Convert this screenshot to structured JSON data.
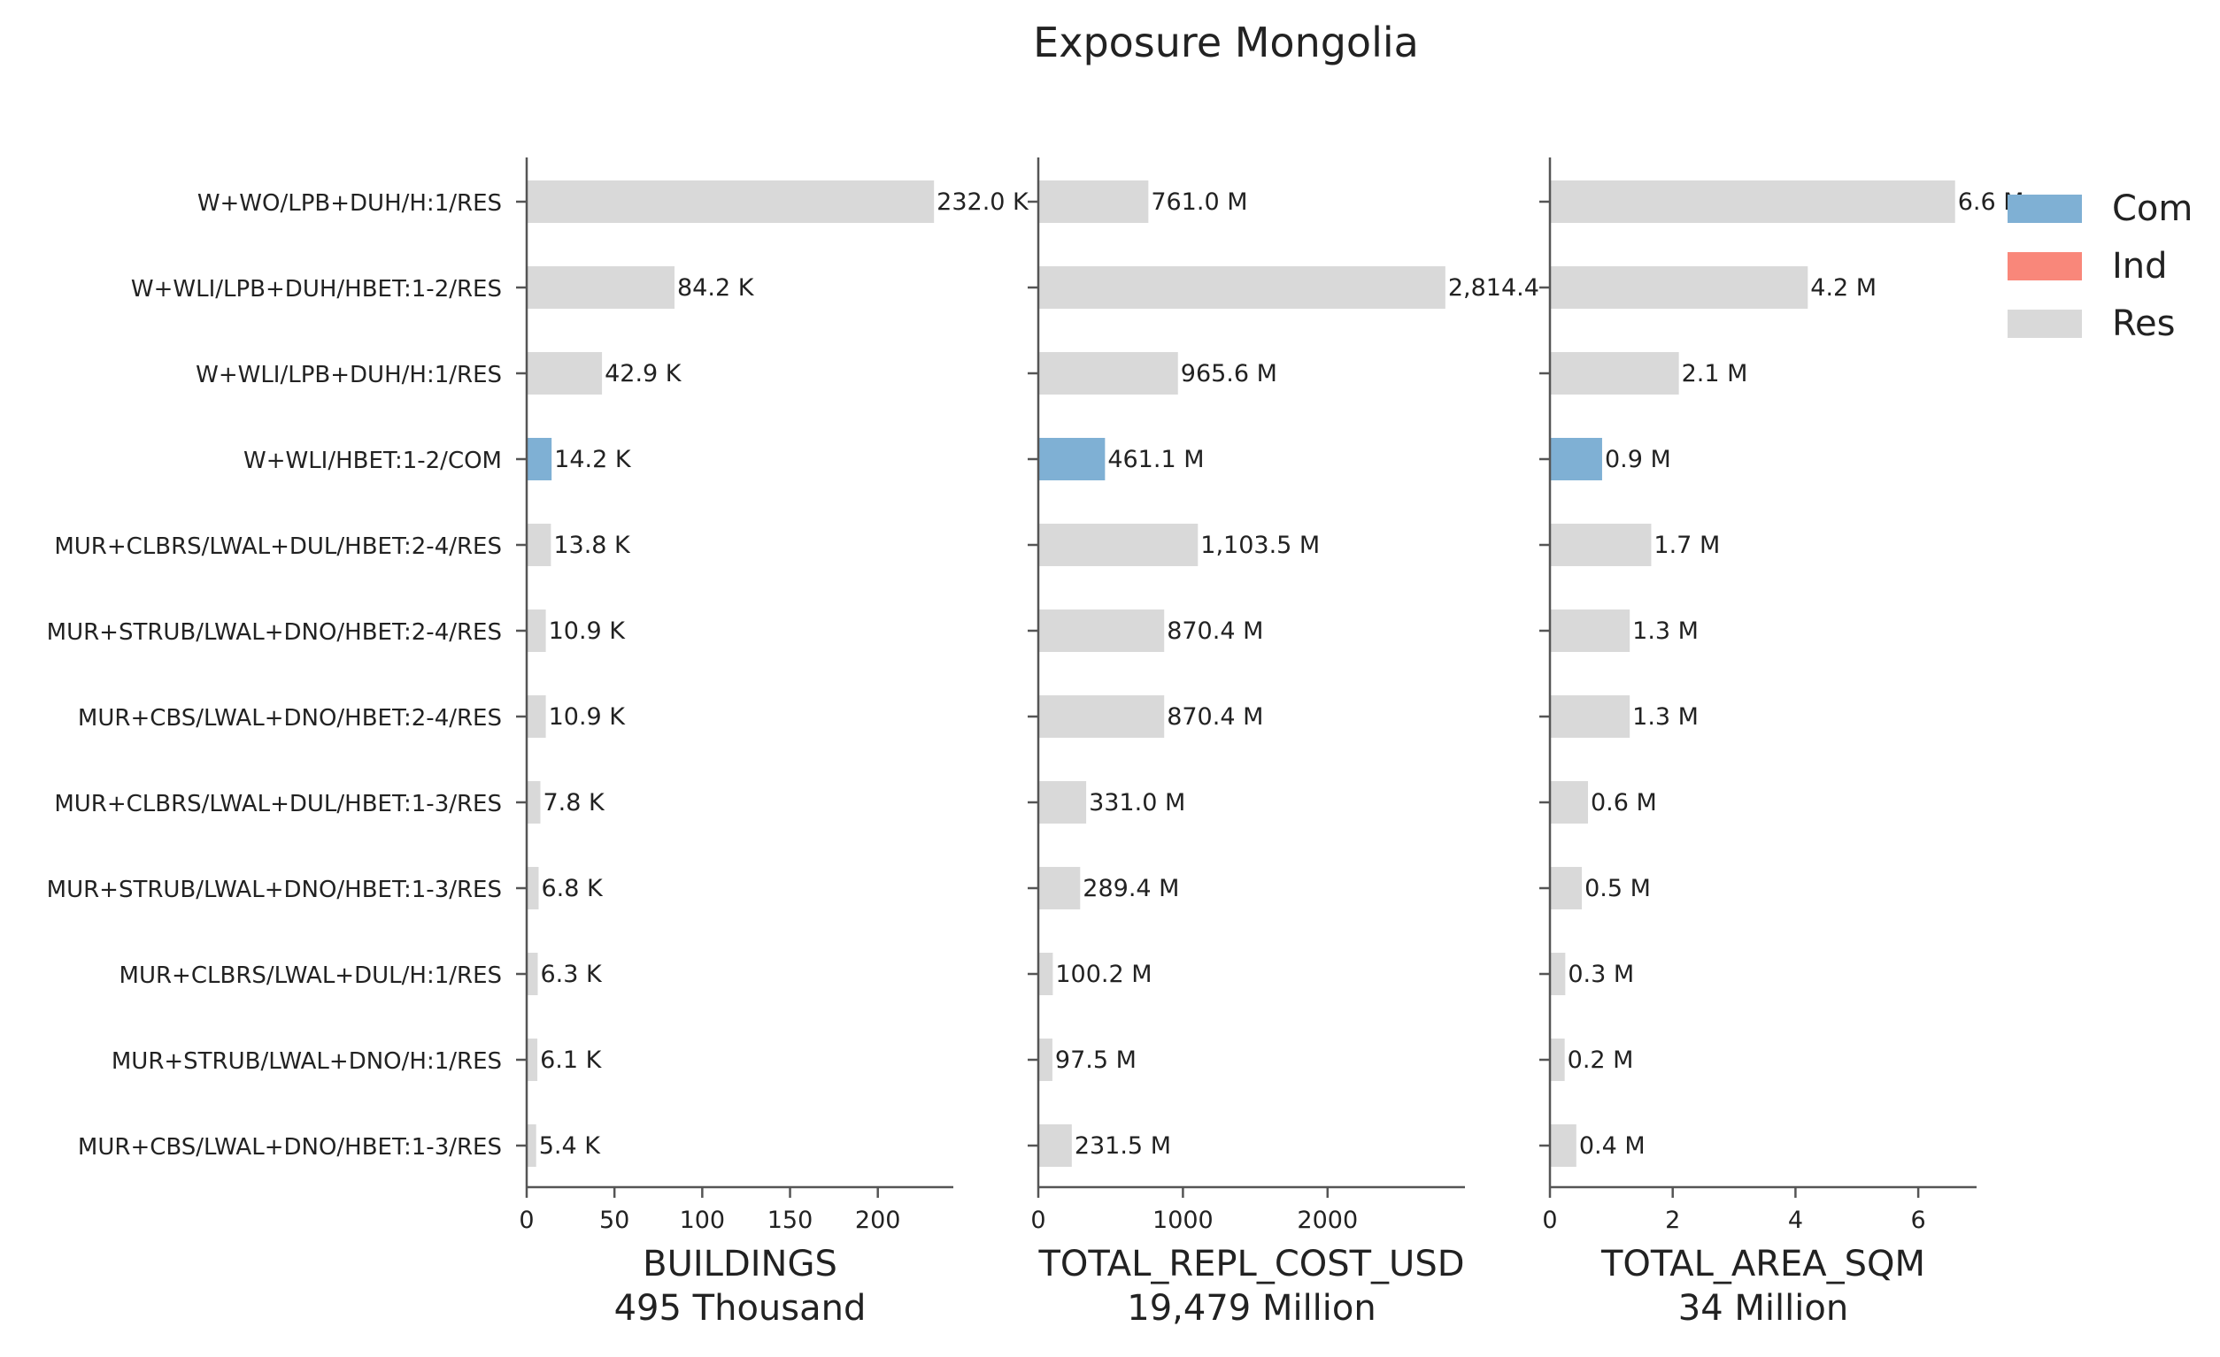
{
  "title": "Exposure Mongolia",
  "chart_data": {
    "type": "bar",
    "orientation": "horizontal",
    "title": "Exposure Mongolia",
    "categories": [
      "W+WO/LPB+DUH/H:1/RES",
      "W+WLI/LPB+DUH/HBET:1-2/RES",
      "W+WLI/LPB+DUH/H:1/RES",
      "W+WLI/HBET:1-2/COM",
      "MUR+CLBRS/LWAL+DUL/HBET:2-4/RES",
      "MUR+STRUB/LWAL+DNO/HBET:2-4/RES",
      "MUR+CBS/LWAL+DNO/HBET:2-4/RES",
      "MUR+CLBRS/LWAL+DUL/HBET:1-3/RES",
      "MUR+STRUB/LWAL+DNO/HBET:1-3/RES",
      "MUR+CLBRS/LWAL+DUL/H:1/RES",
      "MUR+STRUB/LWAL+DNO/H:1/RES",
      "MUR+CBS/LWAL+DNO/HBET:1-3/RES"
    ],
    "occupancy": [
      "Res",
      "Res",
      "Res",
      "Com",
      "Res",
      "Res",
      "Res",
      "Res",
      "Res",
      "Res",
      "Res",
      "Res"
    ],
    "colors": {
      "Com": "#7fb0d4",
      "Ind": "#f9877a",
      "Res": "#d9d9d9"
    },
    "legend": {
      "placement": "top-right",
      "entries": [
        "Com",
        "Ind",
        "Res"
      ]
    },
    "grid": false,
    "panels": [
      {
        "xlabel": "BUILDINGS",
        "total_label": "495 Thousand",
        "xlim": [
          0,
          243
        ],
        "ticks": [
          0,
          50,
          100,
          150,
          200
        ],
        "tick_labels": [
          "0",
          "50",
          "100",
          "150",
          "200"
        ],
        "values": [
          232.0,
          84.2,
          42.9,
          14.2,
          13.8,
          10.9,
          10.9,
          7.8,
          6.8,
          6.3,
          6.1,
          5.4
        ],
        "value_labels": [
          "232.0 K",
          "84.2 K",
          "42.9 K",
          "14.2 K",
          "13.8 K",
          "10.9 K",
          "10.9 K",
          "7.8 K",
          "6.8 K",
          "6.3 K",
          "6.1 K",
          "5.4 K"
        ]
      },
      {
        "xlabel": "TOTAL_REPL_COST_USD",
        "total_label": "19,479 Million",
        "xlim": [
          0,
          2950
        ],
        "ticks": [
          0,
          1000,
          2000
        ],
        "tick_labels": [
          "0",
          "1000",
          "2000"
        ],
        "values": [
          761.0,
          2814.4,
          965.6,
          461.1,
          1103.5,
          870.4,
          870.4,
          331.0,
          289.4,
          100.2,
          97.5,
          231.5
        ],
        "value_labels": [
          "761.0 M",
          "2,814.4 M",
          "965.6 M",
          "461.1 M",
          "1,103.5 M",
          "870.4 M",
          "870.4 M",
          "331.0 M",
          "289.4 M",
          "100.2 M",
          "97.5 M",
          "231.5 M"
        ]
      },
      {
        "xlabel": "TOTAL_AREA_SQM",
        "total_label": "34 Million",
        "xlim": [
          0,
          6.95
        ],
        "ticks": [
          0,
          2,
          4,
          6
        ],
        "tick_labels": [
          "0",
          "2",
          "4",
          "6"
        ],
        "values": [
          6.6,
          4.2,
          2.1,
          0.85,
          1.65,
          1.3,
          1.3,
          0.62,
          0.52,
          0.25,
          0.24,
          0.43
        ],
        "value_labels": [
          "6.6 M",
          "4.2 M",
          "2.1 M",
          "0.9 M",
          "1.7 M",
          "1.3 M",
          "1.3 M",
          "0.6 M",
          "0.5 M",
          "0.3 M",
          "0.2 M",
          "0.4 M"
        ]
      }
    ]
  }
}
